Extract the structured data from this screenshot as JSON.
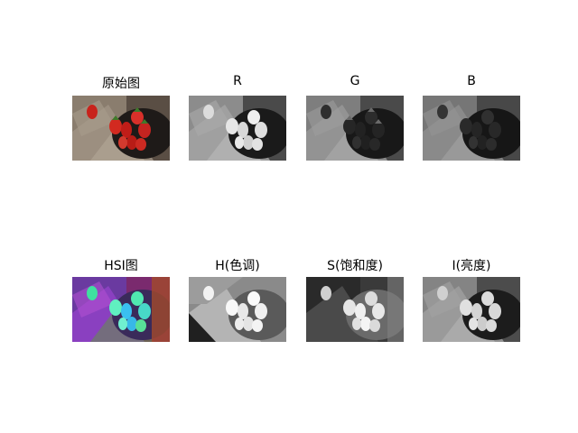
{
  "figure": {
    "panels": [
      {
        "id": "original",
        "title": "原始图",
        "icon": "strawberries-photo-color"
      },
      {
        "id": "r",
        "title": "R",
        "icon": "strawberries-photo-red-channel"
      },
      {
        "id": "g",
        "title": "G",
        "icon": "strawberries-photo-green-channel"
      },
      {
        "id": "b",
        "title": "B",
        "icon": "strawberries-photo-blue-channel"
      },
      {
        "id": "hsi",
        "title": "HSI图",
        "icon": "strawberries-photo-hsi-false-color"
      },
      {
        "id": "h",
        "title": "H(色调)",
        "icon": "strawberries-photo-hue"
      },
      {
        "id": "s",
        "title": "S(饱和度)",
        "icon": "strawberries-photo-saturation"
      },
      {
        "id": "i",
        "title": "I(亮度)",
        "icon": "strawberries-photo-intensity"
      }
    ]
  }
}
